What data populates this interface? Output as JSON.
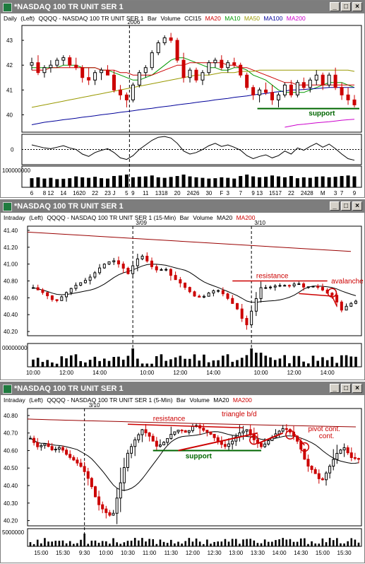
{
  "windows": [
    {
      "title": "*NASDAQ 100 TR UNIT SER 1",
      "legend": [
        {
          "text": "Daily",
          "color": "#000000"
        },
        {
          "text": "(Left)",
          "color": "#000000"
        },
        {
          "text": "QQQQ - NASDAQ 100 TR UNIT SER 1",
          "color": "#000000"
        },
        {
          "text": "Bar",
          "color": "#000000"
        },
        {
          "text": "Volume",
          "color": "#000000"
        },
        {
          "text": "CCI15",
          "color": "#000000"
        },
        {
          "text": "MA20",
          "color": "#cc0000"
        },
        {
          "text": "MA10",
          "color": "#009900"
        },
        {
          "text": "MA50",
          "color": "#999900"
        },
        {
          "text": "MA100",
          "color": "#000099"
        },
        {
          "text": "MA200",
          "color": "#cc00cc"
        }
      ]
    },
    {
      "title": "*NASDAQ 100 TR UNIT SER 1",
      "legend": [
        {
          "text": "Intraday",
          "color": "#000000"
        },
        {
          "text": "(Left)",
          "color": "#000000"
        },
        {
          "text": "QQQQ - NASDAQ 100 TR UNIT SER 1 (15-Min)",
          "color": "#000000"
        },
        {
          "text": "Bar",
          "color": "#000000"
        },
        {
          "text": "Volume",
          "color": "#000000"
        },
        {
          "text": "MA20",
          "color": "#000000"
        },
        {
          "text": "MA200",
          "color": "#cc0000"
        }
      ]
    },
    {
      "title": "*NASDAQ 100 TR UNIT SER 1",
      "legend": [
        {
          "text": "Intraday",
          "color": "#000000"
        },
        {
          "text": "(Left)",
          "color": "#000000"
        },
        {
          "text": "QQQQ - NASDAQ 100 TR UNIT SER 1 (5-Min)",
          "color": "#000000"
        },
        {
          "text": "Bar",
          "color": "#000000"
        },
        {
          "text": "Volume",
          "color": "#000000"
        },
        {
          "text": "MA20",
          "color": "#000000"
        },
        {
          "text": "MA200",
          "color": "#cc0000"
        }
      ]
    }
  ],
  "window_buttons": {
    "minimize": "_",
    "maximize": "□",
    "close": "×"
  },
  "colors": {
    "up": "#000000",
    "down": "#cc0000",
    "annotation": "#cc0000",
    "support": "#006600",
    "ma10": "#009900",
    "ma20": "#cc0000",
    "ma50": "#999900",
    "ma100": "#000099",
    "ma200": "#cc00cc",
    "intraday_ma20": "#000000",
    "intraday_ma200": "#990000"
  },
  "chart_data": [
    {
      "type": "candlestick",
      "timeframe": "Daily",
      "y_ticks": [
        "43",
        "42",
        "41",
        "40"
      ],
      "ylim": [
        39.3,
        43.6
      ],
      "x_ticks": [
        "6",
        "8",
        "12",
        "14",
        "16",
        "20",
        "22",
        "23",
        "J",
        "5",
        "9",
        "11",
        "13",
        "18",
        "20",
        "24",
        "26",
        "30",
        "F",
        "3",
        "7",
        "9",
        "13",
        "15",
        "17",
        "22",
        "24",
        "28",
        "M",
        "3",
        "7",
        "9"
      ],
      "marker_label": "2006",
      "marker_at": "J",
      "candles": [
        [
          42.0,
          42.3,
          41.8,
          42.1
        ],
        [
          42.1,
          42.4,
          41.6,
          41.7
        ],
        [
          41.7,
          42.0,
          41.5,
          41.9
        ],
        [
          41.9,
          42.2,
          41.7,
          42.0
        ],
        [
          42.0,
          42.3,
          41.9,
          42.2
        ],
        [
          42.2,
          42.4,
          42.0,
          42.3
        ],
        [
          42.3,
          42.4,
          41.9,
          42.0
        ],
        [
          42.0,
          42.3,
          41.8,
          41.9
        ],
        [
          41.9,
          42.0,
          41.3,
          41.5
        ],
        [
          41.5,
          41.9,
          41.2,
          41.4
        ],
        [
          41.4,
          41.8,
          41.2,
          41.7
        ],
        [
          41.7,
          41.9,
          41.4,
          41.8
        ],
        [
          41.8,
          42.0,
          41.6,
          41.6
        ],
        [
          41.6,
          41.8,
          40.9,
          41.0
        ],
        [
          41.0,
          41.2,
          40.6,
          40.8
        ],
        [
          40.8,
          40.9,
          40.3,
          40.6
        ],
        [
          40.6,
          41.3,
          40.5,
          41.2
        ],
        [
          41.2,
          41.8,
          41.1,
          41.7
        ],
        [
          41.7,
          42.0,
          41.5,
          41.9
        ],
        [
          41.9,
          42.6,
          41.8,
          42.5
        ],
        [
          42.5,
          43.0,
          42.4,
          42.9
        ],
        [
          42.9,
          43.2,
          42.8,
          43.1
        ],
        [
          43.1,
          43.3,
          42.9,
          43.0
        ],
        [
          43.0,
          43.1,
          42.1,
          42.2
        ],
        [
          42.2,
          42.5,
          41.3,
          41.5
        ],
        [
          41.5,
          41.9,
          41.3,
          41.8
        ],
        [
          41.8,
          41.9,
          41.3,
          41.4
        ],
        [
          41.4,
          41.8,
          41.2,
          41.7
        ],
        [
          41.7,
          42.2,
          41.6,
          42.1
        ],
        [
          42.1,
          42.3,
          41.9,
          42.2
        ],
        [
          42.2,
          42.4,
          41.8,
          41.9
        ],
        [
          41.9,
          42.2,
          41.7,
          42.1
        ],
        [
          42.1,
          42.3,
          41.9,
          42.0
        ],
        [
          42.0,
          42.1,
          41.5,
          41.6
        ],
        [
          41.6,
          41.7,
          41.0,
          41.1
        ],
        [
          41.1,
          41.2,
          40.6,
          40.8
        ],
        [
          40.8,
          41.1,
          40.5,
          41.0
        ],
        [
          41.0,
          41.3,
          40.8,
          40.9
        ],
        [
          40.9,
          41.2,
          40.4,
          40.6
        ],
        [
          40.6,
          40.9,
          40.3,
          40.8
        ],
        [
          40.8,
          41.3,
          40.7,
          41.2
        ],
        [
          41.2,
          41.4,
          40.7,
          40.8
        ],
        [
          40.8,
          41.4,
          40.7,
          41.3
        ],
        [
          41.3,
          41.5,
          41.0,
          41.1
        ],
        [
          41.1,
          41.5,
          40.9,
          41.4
        ],
        [
          41.4,
          41.8,
          41.2,
          41.6
        ],
        [
          41.6,
          41.7,
          41.0,
          41.2
        ],
        [
          41.2,
          41.7,
          41.1,
          41.6
        ],
        [
          41.6,
          41.9,
          41.0,
          41.1
        ],
        [
          41.1,
          41.3,
          40.6,
          40.8
        ],
        [
          40.8,
          41.1,
          40.4,
          40.6
        ],
        [
          40.6,
          40.8,
          40.3,
          40.4
        ]
      ],
      "series": [
        {
          "name": "MA10",
          "color": "#009900",
          "values": [
            41.9,
            41.9,
            41.9,
            41.9,
            41.9,
            42.0,
            42.0,
            42.0,
            41.9,
            41.9,
            41.9,
            41.8,
            41.8,
            41.7,
            41.6,
            41.5,
            41.4,
            41.4,
            41.5,
            41.6,
            41.8,
            42.0,
            42.2,
            42.3,
            42.3,
            42.2,
            42.1,
            42.0,
            41.9,
            41.9,
            41.8,
            41.8,
            41.9,
            41.9,
            41.8,
            41.6,
            41.5,
            41.4,
            41.2,
            41.0,
            40.9,
            40.9,
            40.9,
            40.9,
            41.0,
            41.1,
            41.2,
            41.3,
            41.3,
            41.3,
            41.2,
            41.1
          ]
        },
        {
          "name": "MA20",
          "color": "#cc0000",
          "values": [
            41.8,
            41.8,
            41.8,
            41.9,
            41.9,
            41.9,
            41.9,
            41.9,
            41.9,
            41.9,
            41.9,
            41.8,
            41.8,
            41.8,
            41.7,
            41.7,
            41.6,
            41.6,
            41.6,
            41.6,
            41.7,
            41.8,
            41.9,
            42.0,
            42.0,
            42.1,
            42.1,
            42.1,
            42.1,
            42.1,
            42.1,
            42.0,
            42.0,
            41.9,
            41.9,
            41.8,
            41.7,
            41.6,
            41.5,
            41.4,
            41.3,
            41.3,
            41.2,
            41.2,
            41.2,
            41.2,
            41.2,
            41.2,
            41.2,
            41.2,
            41.2,
            41.2
          ]
        },
        {
          "name": "MA50",
          "color": "#999900",
          "values": [
            40.3,
            40.35,
            40.4,
            40.45,
            40.5,
            40.55,
            40.6,
            40.65,
            40.7,
            40.75,
            40.8,
            40.85,
            40.9,
            40.95,
            41.0,
            41.05,
            41.1,
            41.15,
            41.2,
            41.25,
            41.3,
            41.35,
            41.4,
            41.45,
            41.5,
            41.55,
            41.6,
            41.6,
            41.6,
            41.65,
            41.7,
            41.7,
            41.7,
            41.75,
            41.75,
            41.75,
            41.8,
            41.8,
            41.8,
            41.8,
            41.8,
            41.8,
            41.8,
            41.8,
            41.8,
            41.8,
            41.8,
            41.8,
            41.8,
            41.8,
            41.8,
            41.75
          ]
        },
        {
          "name": "MA100",
          "color": "#000099",
          "values": [
            39.6,
            39.65,
            39.7,
            39.73,
            39.76,
            39.8,
            39.83,
            39.86,
            39.9,
            39.93,
            39.96,
            40.0,
            40.03,
            40.06,
            40.1,
            40.13,
            40.16,
            40.2,
            40.23,
            40.26,
            40.3,
            40.33,
            40.36,
            40.4,
            40.43,
            40.46,
            40.5,
            40.53,
            40.56,
            40.6,
            40.63,
            40.66,
            40.7,
            40.73,
            40.76,
            40.8,
            40.83,
            40.86,
            40.9,
            40.93,
            40.96,
            41.0,
            41.0,
            41.02,
            41.04,
            41.06,
            41.08,
            41.1,
            41.1,
            41.1,
            41.1,
            41.1
          ]
        },
        {
          "name": "MA200",
          "color": "#cc00cc",
          "values": [
            null,
            null,
            null,
            null,
            null,
            null,
            null,
            null,
            null,
            null,
            null,
            null,
            null,
            null,
            null,
            null,
            null,
            null,
            null,
            null,
            null,
            null,
            null,
            null,
            null,
            null,
            null,
            null,
            null,
            null,
            null,
            null,
            null,
            null,
            null,
            null,
            null,
            null,
            null,
            null,
            39.5,
            39.55,
            39.6,
            39.62,
            39.65,
            39.68,
            39.7,
            39.72,
            39.75,
            39.78,
            39.8,
            39.82
          ]
        }
      ],
      "support": {
        "label": "support",
        "value": 40.25,
        "from_index": 37,
        "to_index": 51
      },
      "cci_zero_label": "0",
      "cci": [
        60,
        40,
        20,
        10,
        30,
        50,
        20,
        0,
        -60,
        -90,
        -40,
        -10,
        10,
        -40,
        -110,
        -130,
        -80,
        0,
        60,
        120,
        160,
        170,
        150,
        80,
        -20,
        -60,
        -40,
        0,
        50,
        80,
        40,
        60,
        30,
        -10,
        -80,
        -120,
        -90,
        -70,
        -110,
        -80,
        -20,
        -60,
        20,
        -10,
        40,
        80,
        30,
        70,
        10,
        -60,
        -120,
        -140
      ],
      "volume_label": "100000000",
      "volume": [
        50,
        55,
        48,
        52,
        45,
        47,
        50,
        60,
        55,
        52,
        58,
        50,
        48,
        62,
        65,
        70,
        55,
        58,
        60,
        65,
        55,
        52,
        57,
        62,
        70,
        60,
        55,
        52,
        48,
        50,
        55,
        52,
        48,
        62,
        70,
        60,
        55,
        58,
        65,
        60,
        55,
        62,
        50,
        55,
        52,
        58,
        60,
        55,
        58,
        62,
        65,
        60
      ]
    },
    {
      "type": "candlestick",
      "timeframe": "15-Min",
      "y_ticks": [
        "41.40",
        "41.20",
        "41.00",
        "40.80",
        "40.60",
        "40.40",
        "40.20"
      ],
      "ylim": [
        40.15,
        41.45
      ],
      "x_ticks": [
        "10:00",
        "12:00",
        "14:00",
        "10:00",
        "12:00",
        "14:00",
        "10:00",
        "12:00",
        "14:00"
      ],
      "date_markers": [
        "3/09",
        "3/10"
      ],
      "ma200_start": 41.38,
      "ma200_end": 41.15,
      "annotations": [
        {
          "label": "resistance",
          "value": 40.8
        },
        {
          "label": "avalanche"
        }
      ],
      "volume_label": "00000000"
    },
    {
      "type": "candlestick",
      "timeframe": "5-Min",
      "y_ticks": [
        "40.80",
        "40.70",
        "40.60",
        "40.50",
        "40.40",
        "40.30",
        "40.20"
      ],
      "ylim": [
        40.17,
        40.84
      ],
      "x_ticks": [
        "15:00",
        "15:30",
        "9:30",
        "10:00",
        "10:30",
        "11:00",
        "11:30",
        "12:00",
        "12:30",
        "13:00",
        "13:30",
        "14:00",
        "14:30",
        "15:00",
        "15:30"
      ],
      "date_markers": [
        "3/10"
      ],
      "annotations": [
        {
          "label": "resistance",
          "value": 40.75
        },
        {
          "label": "support",
          "value": 40.6
        },
        {
          "label": "triangle b/d"
        },
        {
          "label": "pivot cont."
        },
        {
          "label": "cont."
        }
      ],
      "volume_label": "5000000"
    }
  ]
}
